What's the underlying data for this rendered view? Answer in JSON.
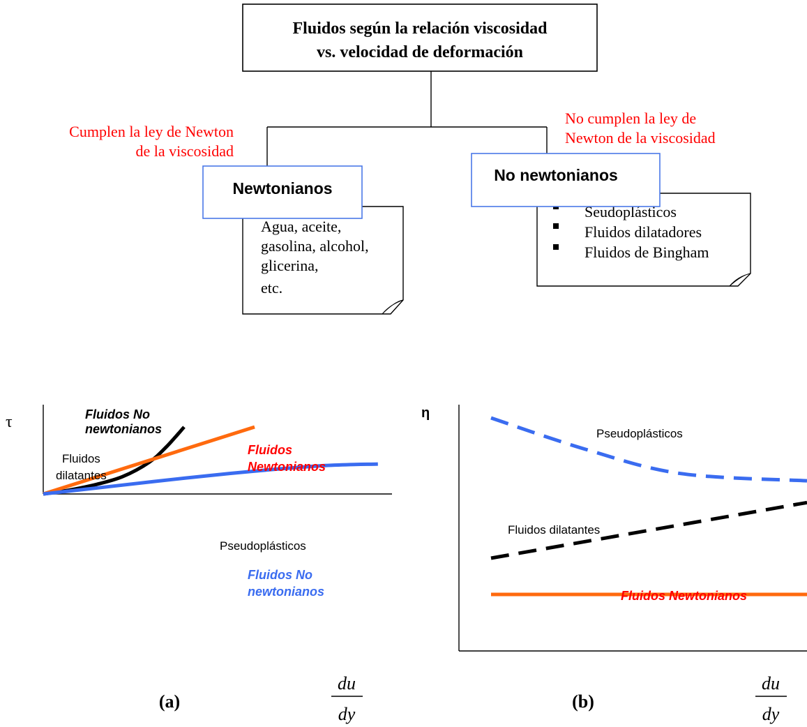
{
  "tree": {
    "root_line1": "Fluidos según la relación viscosidad",
    "root_line2": "vs. velocidad de deformación",
    "left_annot_line1": "Cumplen la ley de Newton",
    "left_annot_line2": "de la viscosidad",
    "right_annot_line1": "No cumplen la ley de",
    "right_annot_line2": "Newton de la viscosidad",
    "newtonian_title": "Newtonianos",
    "newtonian_examples": [
      "Agua, aceite,",
      "gasolina, alcohol,",
      "glicerina,",
      "etc."
    ],
    "nonnewtonian_title": "No newtonianos",
    "nonnewtonian_items": [
      "Seudoplásticos",
      "Fluidos dilatadores",
      "Fluidos de Bingham"
    ]
  },
  "colors": {
    "red_text": "#ff0000",
    "blue_box": "#4a78e8",
    "orange": "#ff6a0e",
    "blue": "#3a6cf0",
    "black": "#000000"
  },
  "chart_data": [
    {
      "type": "line",
      "panel_label": "(a)",
      "ylabel": "τ",
      "xlabel_num": "du",
      "xlabel_den": "dy",
      "annotations": {
        "top_black": [
          "Fluidos No",
          "newtonianos"
        ],
        "dilatant": [
          "Fluidos",
          "dilatantes"
        ],
        "newtonian_red": [
          "Fluidos",
          "Newtonianos"
        ],
        "pseudo": "Pseudoplásticos",
        "nonnewt_blue": [
          "Fluidos No",
          "newtonianos"
        ]
      },
      "series": [
        {
          "name": "Fluidos dilatantes",
          "color": "#000000",
          "style": "solid",
          "x": [
            0,
            0.15,
            0.3,
            0.45,
            0.6,
            0.7,
            0.8
          ],
          "y": [
            0,
            0.05,
            0.12,
            0.22,
            0.4,
            0.6,
            0.85
          ]
        },
        {
          "name": "Fluidos Newtonianos",
          "color": "#ff6a0e",
          "style": "solid",
          "x": [
            0,
            1.2
          ],
          "y": [
            0,
            0.85
          ]
        },
        {
          "name": "Pseudoplásticos",
          "color": "#3a6cf0",
          "style": "solid",
          "x": [
            0,
            0.4,
            0.8,
            1.2,
            1.6,
            1.9
          ],
          "y": [
            0,
            0.1,
            0.2,
            0.29,
            0.36,
            0.38
          ]
        }
      ]
    },
    {
      "type": "line",
      "panel_label": "(b)",
      "ylabel": "η",
      "xlabel_num": "du",
      "xlabel_den": "dy",
      "annotations": {
        "pseudo": "Pseudoplásticos",
        "dilatant": "Fluidos dilatantes",
        "newtonian_red": "Fluidos Newtonianos"
      },
      "series": [
        {
          "name": "Pseudoplásticos",
          "color": "#3a6cf0",
          "style": "dashed",
          "x": [
            0,
            0.3,
            0.6,
            1.0
          ],
          "y": [
            0.95,
            0.82,
            0.72,
            0.69
          ]
        },
        {
          "name": "Fluidos dilatantes",
          "color": "#000000",
          "style": "dashed",
          "x": [
            0,
            1.0
          ],
          "y": [
            0.37,
            0.6
          ]
        },
        {
          "name": "Fluidos Newtonianos",
          "color": "#ff6a0e",
          "style": "solid",
          "x": [
            0,
            1.0
          ],
          "y": [
            0.22,
            0.22
          ]
        }
      ]
    }
  ]
}
